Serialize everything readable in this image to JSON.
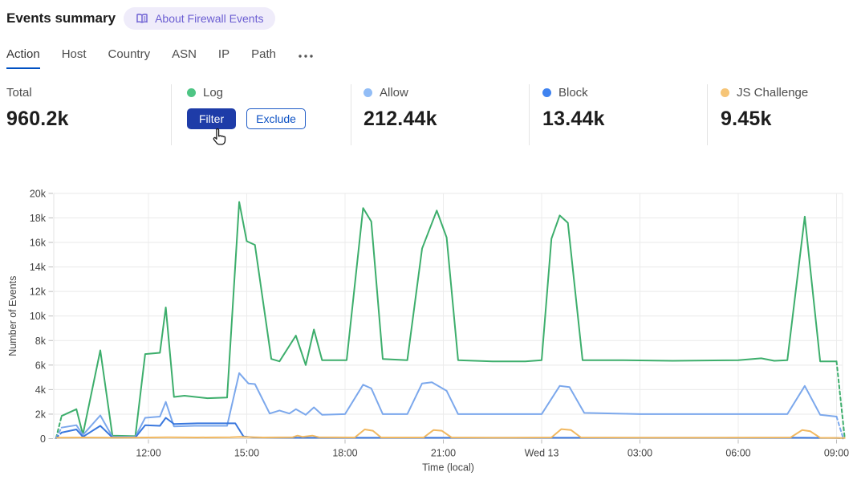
{
  "header": {
    "title": "Events summary",
    "about_link": {
      "label": "About Firewall Events"
    }
  },
  "tabs": {
    "items": [
      {
        "label": "Action",
        "active": true
      },
      {
        "label": "Host",
        "active": false
      },
      {
        "label": "Country",
        "active": false
      },
      {
        "label": "ASN",
        "active": false
      },
      {
        "label": "IP",
        "active": false
      },
      {
        "label": "Path",
        "active": false
      }
    ]
  },
  "stats": {
    "total": {
      "label": "Total",
      "value": "960.2k"
    },
    "cards": [
      {
        "label": "Log",
        "color": "#4ec584",
        "hovered": true,
        "filter_button": "Filter",
        "exclude_button": "Exclude"
      },
      {
        "label": "Allow",
        "color": "#92bdf6",
        "value": "212.44k"
      },
      {
        "label": "Block",
        "color": "#3f83f0",
        "value": "13.44k"
      },
      {
        "label": "JS Challenge",
        "color": "#f6c577",
        "value": "9.45k"
      }
    ]
  },
  "chart_data": {
    "type": "line",
    "xlabel": "Time (local)",
    "ylabel": "Number of Events",
    "x_unit_note": "t = hours since Tue 09:00 local",
    "ylim": [
      0,
      20
    ],
    "y_unit": "thousands of events",
    "grid": true,
    "x_ticks": [
      {
        "t": 3,
        "label": "12:00"
      },
      {
        "t": 6,
        "label": "15:00"
      },
      {
        "t": 9,
        "label": "18:00"
      },
      {
        "t": 12,
        "label": "21:00"
      },
      {
        "t": 15,
        "label": "Wed 13"
      },
      {
        "t": 18,
        "label": "03:00"
      },
      {
        "t": 21,
        "label": "06:00"
      },
      {
        "t": 24,
        "label": "09:00"
      }
    ],
    "y_ticks": [
      {
        "v": 0,
        "label": "0"
      },
      {
        "v": 2,
        "label": "2k"
      },
      {
        "v": 4,
        "label": "4k"
      },
      {
        "v": 6,
        "label": "6k"
      },
      {
        "v": 8,
        "label": "8k"
      },
      {
        "v": 10,
        "label": "10k"
      },
      {
        "v": 12,
        "label": "12k"
      },
      {
        "v": 14,
        "label": "14k"
      },
      {
        "v": 16,
        "label": "16k"
      },
      {
        "v": 18,
        "label": "18k"
      },
      {
        "v": 20,
        "label": "20k"
      }
    ],
    "series": [
      {
        "name": "Log",
        "color": "#3dae6c",
        "dashed_ends": true,
        "points": [
          [
            0.18,
            0.05
          ],
          [
            0.35,
            1.85
          ],
          [
            0.8,
            2.4
          ],
          [
            1.0,
            0.35
          ],
          [
            1.53,
            7.2
          ],
          [
            1.9,
            0.25
          ],
          [
            2.6,
            0.2
          ],
          [
            2.9,
            6.9
          ],
          [
            3.35,
            7.0
          ],
          [
            3.53,
            10.7
          ],
          [
            3.78,
            3.4
          ],
          [
            4.1,
            3.5
          ],
          [
            4.8,
            3.3
          ],
          [
            5.4,
            3.35
          ],
          [
            5.77,
            19.3
          ],
          [
            6.0,
            16.1
          ],
          [
            6.25,
            15.8
          ],
          [
            6.75,
            6.5
          ],
          [
            7.0,
            6.3
          ],
          [
            7.5,
            8.4
          ],
          [
            7.8,
            6.0
          ],
          [
            8.05,
            8.9
          ],
          [
            8.3,
            6.4
          ],
          [
            9.05,
            6.4
          ],
          [
            9.55,
            18.8
          ],
          [
            9.8,
            17.7
          ],
          [
            10.15,
            6.5
          ],
          [
            10.9,
            6.4
          ],
          [
            11.35,
            15.5
          ],
          [
            11.8,
            18.6
          ],
          [
            12.1,
            16.4
          ],
          [
            12.45,
            6.4
          ],
          [
            13.5,
            6.3
          ],
          [
            14.5,
            6.3
          ],
          [
            15.0,
            6.4
          ],
          [
            15.3,
            16.3
          ],
          [
            15.55,
            18.2
          ],
          [
            15.8,
            17.6
          ],
          [
            16.25,
            6.4
          ],
          [
            17.5,
            6.4
          ],
          [
            19.0,
            6.35
          ],
          [
            21.0,
            6.4
          ],
          [
            21.7,
            6.55
          ],
          [
            22.1,
            6.35
          ],
          [
            22.5,
            6.4
          ],
          [
            23.03,
            18.1
          ],
          [
            23.5,
            6.3
          ],
          [
            24.0,
            6.3
          ],
          [
            24.25,
            0.05
          ]
        ]
      },
      {
        "name": "Allow",
        "color": "#7ca8ec",
        "dashed_ends": true,
        "points": [
          [
            0.18,
            0.05
          ],
          [
            0.35,
            0.9
          ],
          [
            0.8,
            1.1
          ],
          [
            1.0,
            0.3
          ],
          [
            1.53,
            1.9
          ],
          [
            1.9,
            0.15
          ],
          [
            2.6,
            0.15
          ],
          [
            2.9,
            1.7
          ],
          [
            3.35,
            1.8
          ],
          [
            3.53,
            3.0
          ],
          [
            3.78,
            1.0
          ],
          [
            4.4,
            1.05
          ],
          [
            5.4,
            1.05
          ],
          [
            5.77,
            5.35
          ],
          [
            6.05,
            4.5
          ],
          [
            6.25,
            4.45
          ],
          [
            6.7,
            2.05
          ],
          [
            7.0,
            2.3
          ],
          [
            7.3,
            2.05
          ],
          [
            7.5,
            2.4
          ],
          [
            7.8,
            1.95
          ],
          [
            8.05,
            2.55
          ],
          [
            8.3,
            1.95
          ],
          [
            9.0,
            2.0
          ],
          [
            9.55,
            4.4
          ],
          [
            9.8,
            4.1
          ],
          [
            10.15,
            2.0
          ],
          [
            10.9,
            2.0
          ],
          [
            11.35,
            4.5
          ],
          [
            11.65,
            4.6
          ],
          [
            12.1,
            3.9
          ],
          [
            12.45,
            2.0
          ],
          [
            14.0,
            2.0
          ],
          [
            15.0,
            2.0
          ],
          [
            15.55,
            4.3
          ],
          [
            15.85,
            4.2
          ],
          [
            16.3,
            2.1
          ],
          [
            18.0,
            2.0
          ],
          [
            20.0,
            2.0
          ],
          [
            22.5,
            2.0
          ],
          [
            23.03,
            4.3
          ],
          [
            23.5,
            1.95
          ],
          [
            24.0,
            1.8
          ],
          [
            24.2,
            0.05
          ]
        ]
      },
      {
        "name": "Block",
        "color": "#3a78de",
        "dashed_ends": true,
        "points": [
          [
            0.18,
            0.05
          ],
          [
            0.35,
            0.5
          ],
          [
            0.8,
            0.75
          ],
          [
            1.0,
            0.15
          ],
          [
            1.53,
            1.05
          ],
          [
            1.9,
            0.1
          ],
          [
            2.6,
            0.1
          ],
          [
            2.9,
            1.1
          ],
          [
            3.35,
            1.05
          ],
          [
            3.53,
            1.7
          ],
          [
            3.78,
            1.2
          ],
          [
            4.5,
            1.25
          ],
          [
            5.65,
            1.25
          ],
          [
            5.9,
            0.18
          ],
          [
            6.2,
            0.1
          ],
          [
            7.0,
            0.08
          ],
          [
            9.0,
            0.07
          ],
          [
            11.0,
            0.07
          ],
          [
            13.0,
            0.07
          ],
          [
            15.0,
            0.07
          ],
          [
            17.0,
            0.07
          ],
          [
            19.0,
            0.07
          ],
          [
            21.0,
            0.07
          ],
          [
            23.0,
            0.07
          ],
          [
            24.0,
            0.06
          ],
          [
            24.2,
            0.02
          ]
        ]
      },
      {
        "name": "JS Challenge",
        "color": "#f1b860",
        "dashed_ends": false,
        "points": [
          [
            0.2,
            0.08
          ],
          [
            1.0,
            0.1
          ],
          [
            2.0,
            0.08
          ],
          [
            3.0,
            0.1
          ],
          [
            3.6,
            0.12
          ],
          [
            4.5,
            0.1
          ],
          [
            5.5,
            0.12
          ],
          [
            5.8,
            0.15
          ],
          [
            6.5,
            0.1
          ],
          [
            7.4,
            0.12
          ],
          [
            7.55,
            0.25
          ],
          [
            7.7,
            0.15
          ],
          [
            8.0,
            0.25
          ],
          [
            8.2,
            0.12
          ],
          [
            9.3,
            0.1
          ],
          [
            9.6,
            0.75
          ],
          [
            9.85,
            0.65
          ],
          [
            10.1,
            0.1
          ],
          [
            11.4,
            0.1
          ],
          [
            11.7,
            0.7
          ],
          [
            11.95,
            0.65
          ],
          [
            12.25,
            0.1
          ],
          [
            13.5,
            0.08
          ],
          [
            15.3,
            0.1
          ],
          [
            15.6,
            0.78
          ],
          [
            15.9,
            0.7
          ],
          [
            16.2,
            0.1
          ],
          [
            18.0,
            0.08
          ],
          [
            20.0,
            0.08
          ],
          [
            22.6,
            0.1
          ],
          [
            22.95,
            0.7
          ],
          [
            23.2,
            0.6
          ],
          [
            23.5,
            0.07
          ],
          [
            24.0,
            0.06
          ],
          [
            24.25,
            0.05
          ]
        ]
      }
    ]
  }
}
